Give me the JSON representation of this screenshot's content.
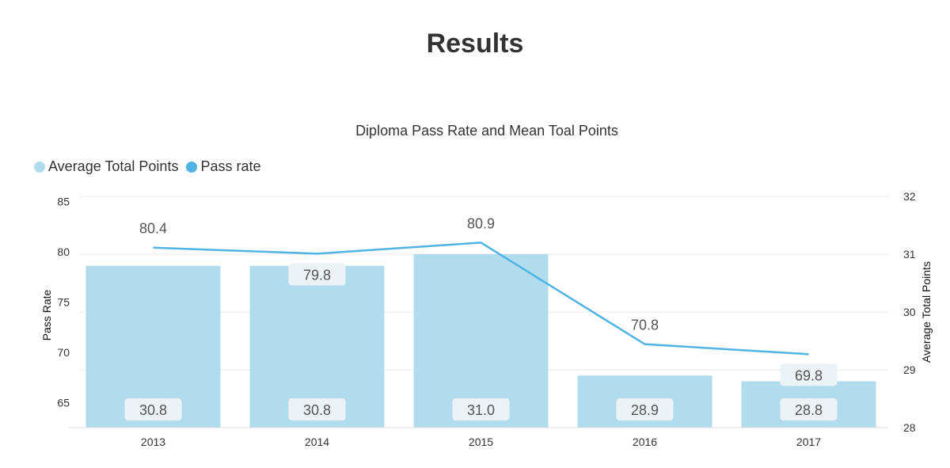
{
  "page": {
    "title": "Results"
  },
  "colors": {
    "bar": "#b1dced",
    "line": "#4fb3e3",
    "grid": "#e8e8e8",
    "label_bg": "#ebf3f7"
  },
  "chart_data": {
    "type": "bar",
    "title": "Diploma Pass Rate and Mean Toal Points",
    "categories": [
      "2013",
      "2014",
      "2015",
      "2016",
      "2017"
    ],
    "legend_position": "top-left",
    "grid": true,
    "series": [
      {
        "name": "Average Total Points",
        "type": "bar",
        "axis": "right",
        "values": [
          30.8,
          30.8,
          31.0,
          28.9,
          28.8
        ]
      },
      {
        "name": "Pass rate",
        "type": "line",
        "axis": "left",
        "values": [
          80.4,
          79.8,
          80.9,
          70.8,
          69.8
        ]
      }
    ],
    "y_left": {
      "label": "Pass Rate",
      "ticks": [
        "65",
        "70",
        "75",
        "80",
        "85"
      ],
      "range": [
        62.5,
        85.5
      ]
    },
    "y_right": {
      "label": "Average Total Points",
      "ticks": [
        "28",
        "29",
        "30",
        "31",
        "32"
      ],
      "range": [
        28,
        32
      ]
    }
  }
}
